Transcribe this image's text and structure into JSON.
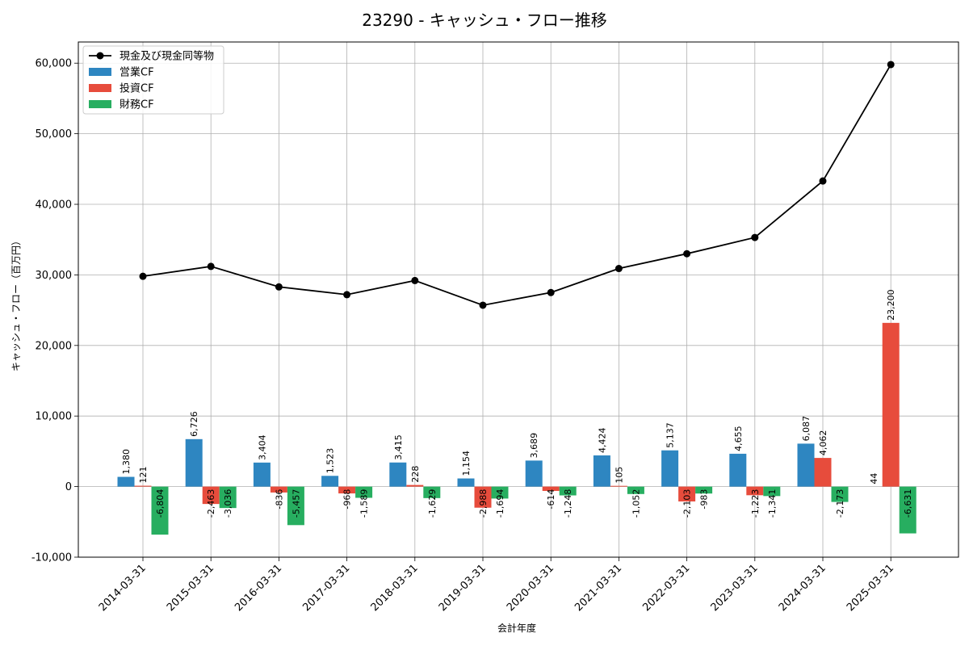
{
  "chart_data": {
    "type": "bar",
    "title": "23290 - キャッシュ・フロー推移",
    "xlabel": "会計年度",
    "ylabel": "キャッシュ・フロー（百万円）",
    "ylim": [
      -10000,
      63000
    ],
    "yticks": [
      -10000,
      0,
      10000,
      20000,
      30000,
      40000,
      50000,
      60000
    ],
    "ytick_labels": [
      "-10,000",
      "0",
      "10,000",
      "20,000",
      "30,000",
      "40,000",
      "50,000",
      "60,000"
    ],
    "grid": true,
    "legend_position": "top-left",
    "categories": [
      "2014-03-31",
      "2015-03-31",
      "2016-03-31",
      "2017-03-31",
      "2018-03-31",
      "2019-03-31",
      "2020-03-31",
      "2021-03-31",
      "2022-03-31",
      "2023-03-31",
      "2024-03-31",
      "2025-03-31"
    ],
    "series": [
      {
        "name": "営業CF",
        "kind": "bar",
        "color": "#2e86c1",
        "values": [
          1380,
          6726,
          3404,
          1523,
          3415,
          1154,
          3689,
          4424,
          5137,
          4655,
          6087,
          null
        ],
        "labels": [
          "1,380",
          "6,726",
          "3,404",
          "1,523",
          "3,415",
          "1,154",
          "3,689",
          "4,424",
          "5,137",
          "4,655",
          "6,087",
          ""
        ]
      },
      {
        "name": "投資CF",
        "kind": "bar",
        "color": "#e74c3c",
        "values": [
          121,
          -2463,
          -836,
          -968,
          228,
          -2988,
          -614,
          105,
          -2103,
          -1223,
          4062,
          23200
        ],
        "labels": [
          "121",
          "-2,463",
          "-836",
          "-968",
          "228",
          "-2,988",
          "-614",
          "105",
          "-2,103",
          "-1,223",
          "4,062",
          "23,200"
        ]
      },
      {
        "name": "財務CF",
        "kind": "bar",
        "color": "#27ae60",
        "values": [
          -6804,
          -3036,
          -5457,
          -1589,
          -1629,
          -1694,
          -1248,
          -1052,
          -983,
          -1341,
          -2173,
          -6631
        ],
        "labels": [
          "-6,804",
          "-3,036",
          "-5,457",
          "-1,589",
          "-1,629",
          "-1,694",
          "-1,248",
          "-1,052",
          "-983",
          "-1,341",
          "-2,173",
          "-6,631"
        ]
      },
      {
        "name": "現金及び現金同等物",
        "kind": "line",
        "color": "#000000",
        "values": [
          29800,
          31200,
          28300,
          27200,
          29200,
          25700,
          27500,
          30900,
          33000,
          35300,
          43300,
          59800
        ]
      }
    ],
    "extra_labels": [
      {
        "category_index": 11,
        "text": "44"
      }
    ]
  }
}
